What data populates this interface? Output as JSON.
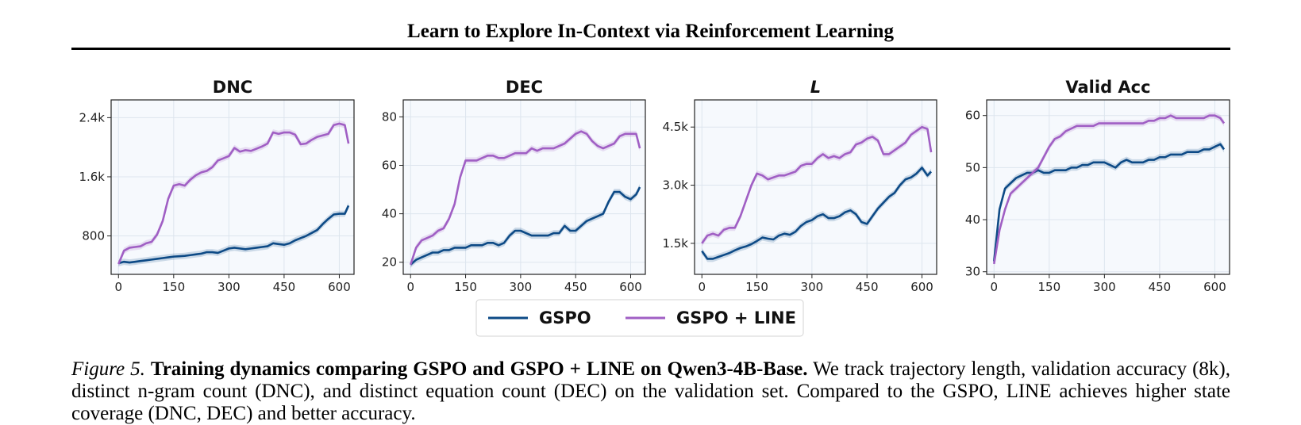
{
  "header": {
    "title": "Learn to Explore In-Context via Reinforcement Learning"
  },
  "colors": {
    "gspo": "#0d4a86",
    "line": "#a05fc4",
    "panel_bg": "#f6f9fd",
    "grid": "#dde5ee"
  },
  "legend": {
    "items": [
      "GSPO",
      "GSPO + LINE"
    ]
  },
  "chart_data": [
    {
      "type": "line",
      "title": "DNC",
      "title_style": "bold",
      "xlim": [
        -20,
        640
      ],
      "ylim": [
        280,
        2640
      ],
      "xticks": [
        0,
        150,
        300,
        450,
        600
      ],
      "xtick_labels": [
        "0",
        "150",
        "300",
        "450",
        "600"
      ],
      "yticks": [
        800,
        1600,
        2400
      ],
      "ytick_labels": [
        "800",
        "1.6k",
        "2.4k"
      ],
      "x": [
        0,
        15,
        30,
        45,
        60,
        75,
        90,
        105,
        120,
        135,
        150,
        165,
        180,
        195,
        210,
        225,
        240,
        255,
        270,
        285,
        300,
        315,
        330,
        345,
        360,
        375,
        390,
        405,
        420,
        435,
        450,
        465,
        480,
        495,
        510,
        525,
        540,
        555,
        570,
        585,
        600,
        615,
        625
      ],
      "series": [
        {
          "name": "GSPO",
          "color": "#0d4a86",
          "values": [
            430,
            450,
            440,
            450,
            460,
            470,
            480,
            490,
            500,
            510,
            520,
            525,
            530,
            540,
            550,
            560,
            580,
            580,
            570,
            600,
            630,
            640,
            630,
            620,
            630,
            640,
            650,
            660,
            700,
            690,
            680,
            700,
            740,
            770,
            800,
            840,
            880,
            960,
            1030,
            1090,
            1100,
            1100,
            1210
          ]
        },
        {
          "name": "GSPO + LINE",
          "color": "#a05fc4",
          "values": [
            420,
            600,
            640,
            650,
            660,
            700,
            720,
            820,
            1000,
            1300,
            1480,
            1500,
            1480,
            1560,
            1620,
            1660,
            1680,
            1730,
            1820,
            1850,
            1880,
            1990,
            1940,
            1960,
            1950,
            1980,
            2010,
            2050,
            2200,
            2180,
            2200,
            2200,
            2170,
            2040,
            2050,
            2100,
            2140,
            2160,
            2180,
            2300,
            2320,
            2300,
            2050
          ]
        }
      ]
    },
    {
      "type": "line",
      "title": "DEC",
      "title_style": "bold",
      "xlim": [
        -20,
        640
      ],
      "ylim": [
        15,
        87
      ],
      "xticks": [
        0,
        150,
        300,
        450,
        600
      ],
      "xtick_labels": [
        "0",
        "150",
        "300",
        "450",
        "600"
      ],
      "yticks": [
        20,
        40,
        60,
        80
      ],
      "ytick_labels": [
        "20",
        "40",
        "60",
        "80"
      ],
      "x": [
        0,
        15,
        30,
        45,
        60,
        75,
        90,
        105,
        120,
        135,
        150,
        165,
        180,
        195,
        210,
        225,
        240,
        255,
        270,
        285,
        300,
        315,
        330,
        345,
        360,
        375,
        390,
        405,
        420,
        435,
        450,
        465,
        480,
        495,
        510,
        525,
        540,
        555,
        570,
        585,
        600,
        615,
        625
      ],
      "series": [
        {
          "name": "GSPO",
          "color": "#0d4a86",
          "values": [
            19,
            21,
            22,
            23,
            24,
            24,
            25,
            25,
            26,
            26,
            26,
            27,
            27,
            27,
            28,
            28,
            27,
            28,
            31,
            33,
            33,
            32,
            31,
            31,
            31,
            31,
            32,
            32,
            35,
            33,
            33,
            35,
            37,
            38,
            39,
            40,
            45,
            49,
            49,
            47,
            46,
            48,
            51
          ]
        },
        {
          "name": "GSPO + LINE",
          "color": "#a05fc4",
          "values": [
            19,
            26,
            29,
            30,
            31,
            33,
            34,
            38,
            44,
            55,
            62,
            62,
            62,
            63,
            64,
            64,
            63,
            63,
            64,
            65,
            65,
            65,
            67,
            66,
            67,
            67,
            67,
            68,
            69,
            71,
            73,
            74,
            73,
            70,
            68,
            67,
            68,
            69,
            72,
            73,
            73,
            73,
            67
          ]
        }
      ]
    },
    {
      "type": "line",
      "title": "L",
      "title_style": "bold-italic",
      "xlim": [
        -20,
        640
      ],
      "ylim": [
        700,
        5200
      ],
      "xticks": [
        0,
        150,
        300,
        450,
        600
      ],
      "xtick_labels": [
        "0",
        "150",
        "300",
        "450",
        "600"
      ],
      "yticks": [
        1500,
        3000,
        4500
      ],
      "ytick_labels": [
        "1.5k",
        "3.0k",
        "4.5k"
      ],
      "x": [
        0,
        15,
        30,
        45,
        60,
        75,
        90,
        105,
        120,
        135,
        150,
        165,
        180,
        195,
        210,
        225,
        240,
        255,
        270,
        285,
        300,
        315,
        330,
        345,
        360,
        375,
        390,
        405,
        420,
        435,
        450,
        465,
        480,
        495,
        510,
        525,
        540,
        555,
        570,
        585,
        600,
        615,
        625
      ],
      "series": [
        {
          "name": "GSPO",
          "color": "#0d4a86",
          "values": [
            1300,
            1100,
            1100,
            1150,
            1200,
            1250,
            1320,
            1380,
            1420,
            1480,
            1560,
            1650,
            1620,
            1600,
            1700,
            1750,
            1720,
            1800,
            1950,
            2050,
            2100,
            2200,
            2250,
            2150,
            2150,
            2200,
            2300,
            2350,
            2250,
            2050,
            2000,
            2200,
            2400,
            2550,
            2700,
            2800,
            3000,
            3150,
            3200,
            3300,
            3450,
            3250,
            3350
          ]
        },
        {
          "name": "GSPO + LINE",
          "color": "#a05fc4",
          "values": [
            1500,
            1700,
            1750,
            1700,
            1850,
            1900,
            1900,
            2200,
            2600,
            3000,
            3300,
            3250,
            3150,
            3200,
            3250,
            3250,
            3300,
            3350,
            3500,
            3550,
            3550,
            3700,
            3800,
            3700,
            3750,
            3700,
            3800,
            3850,
            4050,
            4100,
            4200,
            4250,
            4150,
            3800,
            3800,
            3900,
            4000,
            4100,
            4300,
            4400,
            4500,
            4450,
            3850
          ]
        }
      ]
    },
    {
      "type": "line",
      "title": "Valid Acc",
      "title_style": "bold",
      "xlim": [
        -20,
        640
      ],
      "ylim": [
        29.5,
        63
      ],
      "xticks": [
        0,
        150,
        300,
        450,
        600
      ],
      "xtick_labels": [
        "0",
        "150",
        "300",
        "450",
        "600"
      ],
      "yticks": [
        30,
        40,
        50,
        60
      ],
      "ytick_labels": [
        "30",
        "40",
        "50",
        "60"
      ],
      "x": [
        0,
        15,
        30,
        45,
        60,
        75,
        90,
        105,
        120,
        135,
        150,
        165,
        180,
        195,
        210,
        225,
        240,
        255,
        270,
        285,
        300,
        315,
        330,
        345,
        360,
        375,
        390,
        405,
        420,
        435,
        450,
        465,
        480,
        495,
        510,
        525,
        540,
        555,
        570,
        585,
        600,
        615,
        625
      ],
      "series": [
        {
          "name": "GSPO",
          "color": "#0d4a86",
          "values": [
            32,
            42,
            46,
            47,
            48,
            48.5,
            49,
            49,
            49.5,
            49,
            49,
            49.5,
            49.5,
            49.5,
            50,
            50,
            50.5,
            50.5,
            51,
            51,
            51,
            50.5,
            50,
            51,
            51.5,
            51,
            51,
            51,
            51.5,
            51.5,
            52,
            52,
            52.5,
            52.5,
            52.5,
            53,
            53,
            53,
            53.5,
            53.5,
            54,
            54.5,
            53.5
          ]
        },
        {
          "name": "GSPO + LINE",
          "color": "#a05fc4",
          "values": [
            31.5,
            38,
            42,
            45,
            46,
            47,
            48,
            49,
            50,
            52,
            54,
            55.5,
            56,
            57,
            57.5,
            58,
            58,
            58,
            58,
            58.5,
            58.5,
            58.5,
            58.5,
            58.5,
            58.5,
            58.5,
            58.5,
            58.5,
            59,
            59,
            59.5,
            59.5,
            60,
            59.5,
            59.5,
            59.5,
            59.5,
            59.5,
            59.5,
            60,
            60,
            59.5,
            58.5
          ]
        }
      ]
    }
  ],
  "caption": {
    "figure_label": "Figure 5.",
    "bold_title": "Training dynamics comparing GSPO and GSPO + LINE on Qwen3-4B-Base.",
    "body": "We track trajectory length, validation accuracy (8k), distinct n-gram count (DNC), and distinct equation count (DEC) on the validation set. Compared to the GSPO, LINE achieves higher state coverage (DNC, DEC) and better accuracy."
  }
}
